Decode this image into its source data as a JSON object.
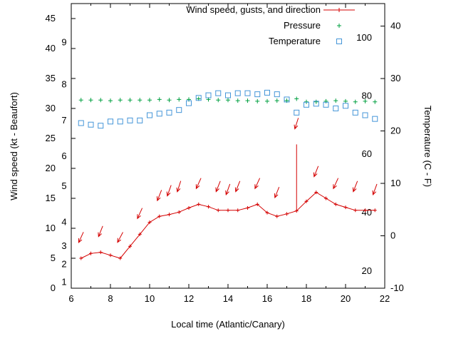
{
  "chart_data": {
    "type": "line",
    "title": "",
    "xlabel": "Local time (Atlantic/Canary)",
    "ylabel_left": "Wind speed (kt - Beaufort)",
    "ylabel_right": "Temperature (C - F)",
    "xlim": [
      6,
      22
    ],
    "xticks": [
      6,
      8,
      10,
      12,
      14,
      16,
      18,
      20,
      22
    ],
    "xminor": [
      7,
      9,
      11,
      13,
      15,
      17,
      19,
      21
    ],
    "ylim_left": [
      0,
      47.5
    ],
    "yticks_left": [
      0,
      5,
      10,
      15,
      20,
      25,
      30,
      35,
      40,
      45
    ],
    "ylim_right": [
      -10,
      44.3
    ],
    "yticks_right": [
      -10,
      0,
      10,
      20,
      30,
      40
    ],
    "beaufort_labels": [
      {
        "label": "1",
        "kt": 1
      },
      {
        "label": "2",
        "kt": 4
      },
      {
        "label": "3",
        "kt": 7
      },
      {
        "label": "4",
        "kt": 11
      },
      {
        "label": "5",
        "kt": 17
      },
      {
        "label": "6",
        "kt": 22
      },
      {
        "label": "7",
        "kt": 28
      },
      {
        "label": "8",
        "kt": 34
      },
      {
        "label": "9",
        "kt": 41
      }
    ],
    "fahrenheit_labels": [
      {
        "label": "20",
        "c": -6.7
      },
      {
        "label": "40",
        "c": 4.4
      },
      {
        "label": "60",
        "c": 15.6
      },
      {
        "label": "80",
        "c": 26.7
      },
      {
        "label": "100",
        "c": 37.8
      }
    ],
    "legend": [
      {
        "label": "Wind speed, gusts, and direction",
        "marker": "line-plus",
        "color": "#d40000"
      },
      {
        "label": "Pressure",
        "marker": "plus",
        "color": "#00a040"
      },
      {
        "label": "Temperature",
        "marker": "square",
        "color": "#4596d8"
      }
    ],
    "x": [
      6.5,
      7,
      7.5,
      8,
      8.5,
      9,
      9.5,
      10,
      10.5,
      11,
      11.5,
      12,
      12.5,
      13,
      13.5,
      14,
      14.5,
      15,
      15.5,
      16,
      16.5,
      17,
      17.5,
      18,
      18.5,
      19,
      19.5,
      20,
      20.5,
      21,
      21.5
    ],
    "wind_speed": [
      5.0,
      5.8,
      6.0,
      5.5,
      5.0,
      7.0,
      9.0,
      11.0,
      12.0,
      12.3,
      12.7,
      13.4,
      14.0,
      13.6,
      13.0,
      13.0,
      13.0,
      13.4,
      14.0,
      12.6,
      12.0,
      12.4,
      12.9,
      14.5,
      16.0,
      15.0,
      14.0,
      13.5,
      13.0,
      13.0,
      13.0
    ],
    "wind_gust": [
      5.0,
      5.8,
      6.0,
      5.5,
      5.0,
      7.0,
      9.0,
      11.0,
      12.0,
      12.3,
      12.7,
      13.4,
      14.0,
      13.6,
      13.0,
      13.0,
      13.0,
      13.4,
      14.0,
      12.6,
      12.0,
      12.4,
      24.0,
      14.5,
      16.0,
      15.0,
      14.0,
      13.5,
      13.0,
      13.0,
      13.0
    ],
    "wind_dir_arrows": [
      {
        "x": 6.5,
        "v": 8.5,
        "angle": 115
      },
      {
        "x": 7.5,
        "v": 9.5,
        "angle": 112
      },
      {
        "x": 8.5,
        "v": 8.5,
        "angle": 118
      },
      {
        "x": 9.5,
        "v": 12.5,
        "angle": 115
      },
      {
        "x": 10.5,
        "v": 15.5,
        "angle": 112
      },
      {
        "x": 11.0,
        "v": 16.3,
        "angle": 110
      },
      {
        "x": 11.5,
        "v": 17.0,
        "angle": 108
      },
      {
        "x": 12.5,
        "v": 17.5,
        "angle": 115
      },
      {
        "x": 13.5,
        "v": 17.0,
        "angle": 112
      },
      {
        "x": 14.0,
        "v": 16.5,
        "angle": 110
      },
      {
        "x": 14.5,
        "v": 17.0,
        "angle": 112
      },
      {
        "x": 15.5,
        "v": 17.5,
        "angle": 115
      },
      {
        "x": 16.5,
        "v": 16.0,
        "angle": 112
      },
      {
        "x": 17.5,
        "v": 27.5,
        "angle": 108
      },
      {
        "x": 18.5,
        "v": 19.5,
        "angle": 112
      },
      {
        "x": 19.5,
        "v": 17.5,
        "angle": 115
      },
      {
        "x": 20.5,
        "v": 17.0,
        "angle": 112
      },
      {
        "x": 21.5,
        "v": 16.5,
        "angle": 110
      }
    ],
    "pressure": [
      31.4,
      31.4,
      31.4,
      31.3,
      31.4,
      31.4,
      31.4,
      31.4,
      31.5,
      31.4,
      31.5,
      31.5,
      31.6,
      31.5,
      31.4,
      31.4,
      31.3,
      31.3,
      31.2,
      31.2,
      31.3,
      31.3,
      31.6,
      31.1,
      31.1,
      31.2,
      31.3,
      31.2,
      31.1,
      31.2,
      31.1
    ],
    "temperature_c": [
      21.5,
      21.2,
      21.0,
      21.8,
      21.8,
      22.0,
      22.0,
      23.0,
      23.3,
      23.5,
      24.0,
      25.3,
      26.3,
      26.8,
      27.2,
      26.8,
      27.2,
      27.2,
      27.0,
      27.3,
      27.0,
      26.0,
      23.5,
      25.0,
      25.2,
      25.0,
      24.3,
      24.8,
      23.5,
      23.0,
      22.3
    ]
  },
  "colors": {
    "wind": "#d40000",
    "pressure": "#00a040",
    "temperature": "#4596d8",
    "axis": "#000000"
  }
}
